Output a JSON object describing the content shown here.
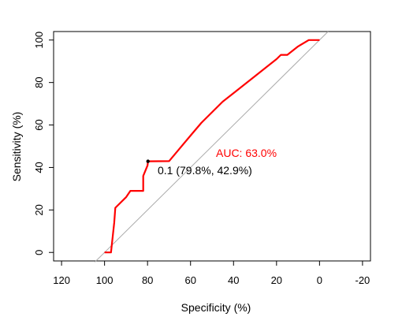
{
  "chart_data": {
    "type": "line",
    "xlabel": "Specificity (%)",
    "ylabel": "Sensitivity (%)",
    "x_reversed": true,
    "xlim": [
      123.7,
      -23.7
    ],
    "ylim": [
      -4,
      104
    ],
    "x_ticks": [
      120,
      100,
      80,
      60,
      40,
      20,
      0,
      -20
    ],
    "y_ticks": [
      0,
      20,
      40,
      60,
      80,
      100
    ],
    "grid": false,
    "colors": {
      "curve": "#ff0000",
      "diagonal": "#aaaaaa",
      "auc_text": "#ff0000",
      "point": "#000000"
    },
    "series": [
      {
        "type": "roc",
        "x": [
          100,
          98.5,
          97,
          95.5,
          95,
          90,
          88,
          85,
          82,
          82,
          80,
          79.8,
          70,
          65,
          60,
          55,
          50,
          45,
          40,
          35,
          30,
          25,
          20,
          18,
          15,
          10,
          5,
          0
        ],
        "y": [
          0,
          0,
          0,
          14,
          21,
          26,
          29,
          29,
          29,
          36,
          41,
          42.9,
          43,
          49,
          55,
          61,
          66,
          71,
          75,
          79,
          83,
          87,
          91,
          93,
          93,
          97,
          100,
          100
        ]
      },
      {
        "type": "diagonal",
        "x": [
          100,
          0
        ],
        "y": [
          0,
          100
        ]
      }
    ],
    "annotations": {
      "auc": "AUC: 63.0%",
      "threshold_label": "0.1 (79.8%, 42.9%)",
      "threshold_point": {
        "x": 79.8,
        "y": 42.9
      }
    }
  }
}
